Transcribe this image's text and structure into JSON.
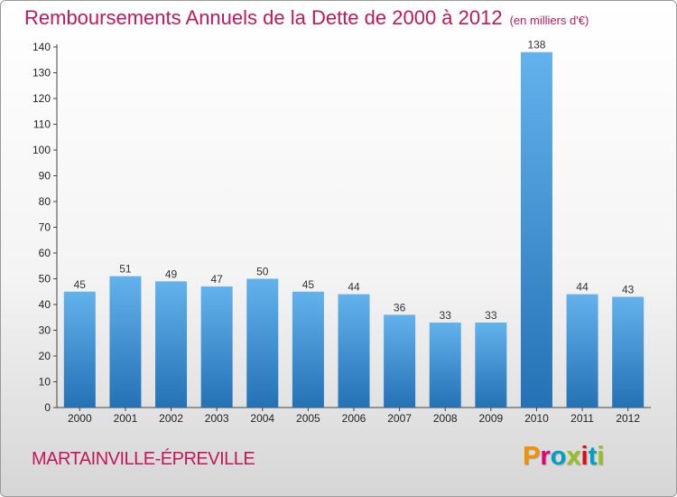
{
  "title": "Remboursements Annuels de la Dette de 2000 à 2012",
  "unit_note": "(en milliers d'€)",
  "commune": "MARTAINVILLE-ÉPREVILLE",
  "brand": "Proxiti",
  "brand_colors": [
    "#f39200",
    "#e4007c",
    "#00a0c6",
    "#95c11f",
    "#e30613",
    "#00a0c6",
    "#95c11f"
  ],
  "colors": {
    "title": "#c2185b",
    "bar_top": "#63b2ec",
    "bar_bottom": "#2471b5"
  },
  "chart_data": {
    "type": "bar",
    "title": "Remboursements Annuels de la Dette de 2000 à 2012",
    "xlabel": "",
    "ylabel": "",
    "categories": [
      "2000",
      "2001",
      "2002",
      "2003",
      "2004",
      "2005",
      "2006",
      "2007",
      "2008",
      "2009",
      "2010",
      "2011",
      "2012"
    ],
    "values": [
      45,
      51,
      49,
      47,
      50,
      45,
      44,
      36,
      33,
      33,
      138,
      44,
      43
    ],
    "ylim": [
      0,
      140
    ],
    "yticks": [
      0,
      10,
      20,
      30,
      40,
      50,
      60,
      70,
      80,
      90,
      100,
      110,
      120,
      130,
      140
    ],
    "grid": false,
    "legend": "none"
  }
}
